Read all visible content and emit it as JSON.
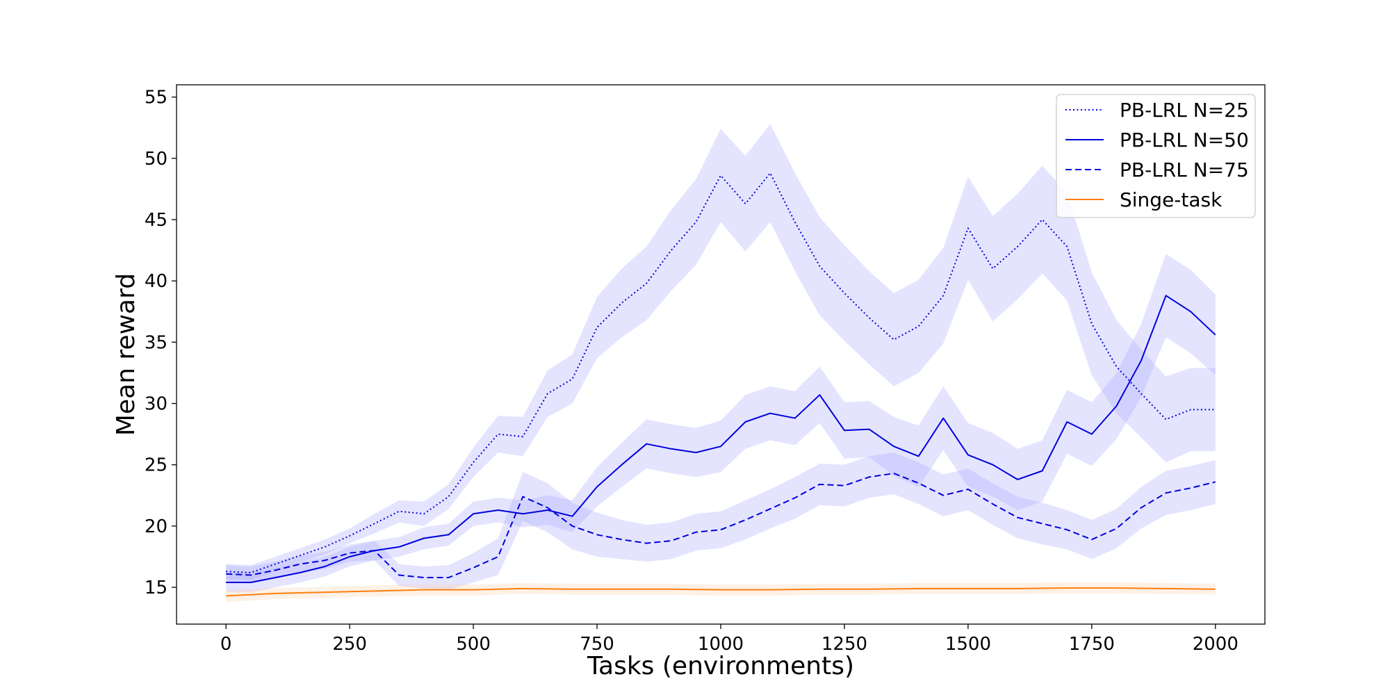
{
  "chart_data": {
    "type": "line",
    "title": "",
    "xlabel": "Tasks (environments)",
    "ylabel": "Mean reward",
    "xlim": [
      -100,
      2100
    ],
    "ylim": [
      12,
      56
    ],
    "xticks": [
      0,
      250,
      500,
      750,
      1000,
      1250,
      1500,
      1750,
      2000
    ],
    "yticks": [
      15,
      20,
      25,
      30,
      35,
      40,
      45,
      50,
      55
    ],
    "xtick_labels": [
      "0",
      "250",
      "500",
      "750",
      "1000",
      "1250",
      "1500",
      "1750",
      "2000"
    ],
    "ytick_labels": [
      "15",
      "20",
      "25",
      "30",
      "35",
      "40",
      "45",
      "50",
      "55"
    ],
    "grid": false,
    "legend_position": "top-right",
    "series": [
      {
        "name": "PB-LRL N=25",
        "color": "#0000dd",
        "dash": "dotted",
        "band_color": "#aaaaff",
        "x": [
          0,
          50,
          100,
          150,
          200,
          250,
          300,
          350,
          400,
          450,
          500,
          550,
          600,
          650,
          700,
          750,
          800,
          850,
          900,
          950,
          1000,
          1050,
          1100,
          1150,
          1200,
          1250,
          1300,
          1350,
          1400,
          1450,
          1500,
          1550,
          1600,
          1650,
          1700,
          1750,
          1800,
          1850,
          1900,
          1950,
          2000
        ],
        "y": [
          16.3,
          16.2,
          16.9,
          17.6,
          18.3,
          19.2,
          20.2,
          21.2,
          21.0,
          22.4,
          25.2,
          27.5,
          27.3,
          30.8,
          32.0,
          36.2,
          38.2,
          39.8,
          42.5,
          44.8,
          48.6,
          46.3,
          48.8,
          44.8,
          41.2,
          39.0,
          37.0,
          35.2,
          36.3,
          38.8,
          44.3,
          41.0,
          42.8,
          45.0,
          42.8,
          36.5,
          33.0,
          30.8,
          28.7,
          29.5,
          29.5
        ],
        "band": [
          0.6,
          0.6,
          0.6,
          0.6,
          0.6,
          0.6,
          0.8,
          0.9,
          1.0,
          1.0,
          1.2,
          1.5,
          1.6,
          1.9,
          2.0,
          2.5,
          2.8,
          3.0,
          3.3,
          3.5,
          3.8,
          3.9,
          4.0,
          4.0,
          4.0,
          3.9,
          3.8,
          3.8,
          3.8,
          3.9,
          4.2,
          4.3,
          4.3,
          4.4,
          4.4,
          4.2,
          3.8,
          3.6,
          3.5,
          3.4,
          3.4
        ]
      },
      {
        "name": "PB-LRL N=50",
        "color": "#0000dd",
        "dash": "solid",
        "band_color": "#aaaaff",
        "x": [
          0,
          50,
          100,
          150,
          200,
          250,
          300,
          350,
          400,
          450,
          500,
          550,
          600,
          650,
          700,
          750,
          800,
          850,
          900,
          950,
          1000,
          1050,
          1100,
          1150,
          1200,
          1250,
          1300,
          1350,
          1400,
          1450,
          1500,
          1550,
          1600,
          1650,
          1700,
          1750,
          1800,
          1850,
          1900,
          1950,
          2000
        ],
        "y": [
          15.4,
          15.4,
          15.8,
          16.2,
          16.7,
          17.5,
          18.0,
          18.3,
          19.0,
          19.3,
          21.0,
          21.3,
          21.0,
          21.3,
          20.8,
          23.2,
          25.0,
          26.7,
          26.3,
          26.0,
          26.5,
          28.5,
          29.2,
          28.8,
          30.7,
          27.8,
          27.9,
          26.5,
          25.7,
          28.8,
          25.8,
          25.0,
          23.8,
          24.5,
          28.5,
          27.5,
          29.8,
          33.5,
          38.8,
          37.5,
          35.6
        ],
        "band": [
          0.8,
          0.8,
          0.8,
          0.8,
          0.8,
          0.8,
          0.8,
          0.8,
          0.9,
          0.9,
          1.0,
          1.0,
          1.1,
          1.2,
          1.3,
          1.6,
          1.8,
          2.0,
          2.0,
          2.0,
          2.1,
          2.2,
          2.2,
          2.2,
          2.3,
          2.3,
          2.3,
          2.4,
          2.5,
          2.6,
          2.6,
          2.6,
          2.5,
          2.5,
          2.6,
          2.6,
          2.7,
          3.0,
          3.4,
          3.4,
          3.3
        ]
      },
      {
        "name": "PB-LRL N=75",
        "color": "#0000dd",
        "dash": "dashed",
        "band_color": "#aaaaff",
        "x": [
          0,
          50,
          100,
          150,
          200,
          250,
          300,
          350,
          400,
          450,
          500,
          550,
          600,
          650,
          700,
          750,
          800,
          850,
          900,
          950,
          1000,
          1050,
          1100,
          1150,
          1200,
          1250,
          1300,
          1350,
          1400,
          1450,
          1500,
          1550,
          1600,
          1650,
          1700,
          1750,
          1800,
          1850,
          1900,
          1950,
          2000
        ],
        "y": [
          16.1,
          16.0,
          16.4,
          16.9,
          17.2,
          17.8,
          18.0,
          16.0,
          15.8,
          15.8,
          16.6,
          17.5,
          22.4,
          21.5,
          20.0,
          19.3,
          18.9,
          18.6,
          18.8,
          19.5,
          19.7,
          20.5,
          21.4,
          22.3,
          23.4,
          23.3,
          24.0,
          24.3,
          23.5,
          22.5,
          23.0,
          21.8,
          20.7,
          20.2,
          19.7,
          18.9,
          19.8,
          21.5,
          22.7,
          23.1,
          23.6
        ],
        "band": [
          0.7,
          0.7,
          0.7,
          0.7,
          0.7,
          0.7,
          0.8,
          0.9,
          0.9,
          1.0,
          1.2,
          1.5,
          2.0,
          2.0,
          1.9,
          1.8,
          1.6,
          1.5,
          1.5,
          1.5,
          1.5,
          1.6,
          1.6,
          1.7,
          1.7,
          1.7,
          1.7,
          1.7,
          1.7,
          1.7,
          1.7,
          1.7,
          1.7,
          1.7,
          1.6,
          1.6,
          1.6,
          1.7,
          1.8,
          1.8,
          1.8
        ]
      },
      {
        "name": "Singe-task",
        "color": "#ff7f0e",
        "dash": "solid",
        "band_color": "#fbd5b0",
        "x": [
          0,
          100,
          200,
          300,
          400,
          500,
          600,
          700,
          800,
          900,
          1000,
          1100,
          1200,
          1300,
          1400,
          1500,
          1600,
          1700,
          1800,
          1900,
          2000
        ],
        "y": [
          14.3,
          14.5,
          14.6,
          14.7,
          14.8,
          14.8,
          14.9,
          14.85,
          14.85,
          14.85,
          14.8,
          14.8,
          14.85,
          14.85,
          14.9,
          14.9,
          14.9,
          14.95,
          14.95,
          14.9,
          14.85
        ],
        "band": [
          0.5,
          0.45,
          0.45,
          0.45,
          0.45,
          0.45,
          0.45,
          0.45,
          0.45,
          0.45,
          0.45,
          0.45,
          0.45,
          0.45,
          0.45,
          0.45,
          0.45,
          0.45,
          0.45,
          0.45,
          0.45
        ]
      }
    ]
  }
}
